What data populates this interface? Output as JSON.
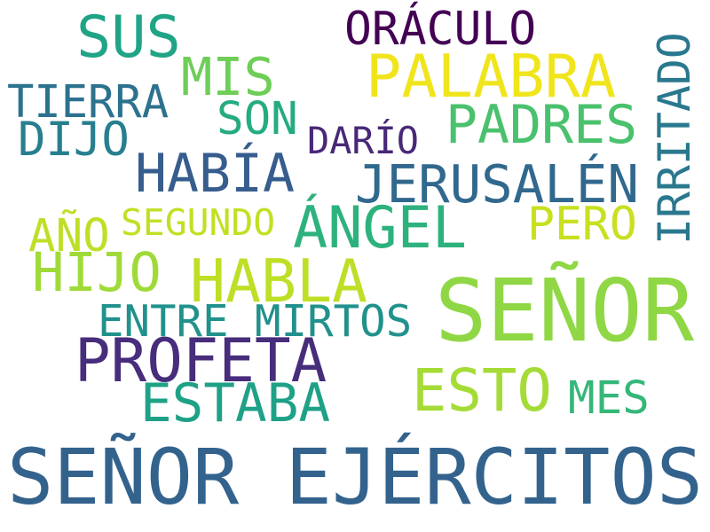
{
  "cloud": {
    "words": [
      {
        "text": "SEÑOR EJÉRCITOS",
        "color": "#33638d"
      },
      {
        "text": "SEÑOR",
        "color": "#8fd744"
      },
      {
        "text": "PROFETA",
        "color": "#472d7b"
      },
      {
        "text": "PALABRA",
        "color": "#f0e51d"
      },
      {
        "text": "ÁNGEL",
        "color": "#2db27d"
      },
      {
        "text": "HABLA",
        "color": "#bddf26"
      },
      {
        "text": "SUS",
        "color": "#20a486"
      },
      {
        "text": "HIJO",
        "color": "#a0da39"
      },
      {
        "text": "ESTABA",
        "color": "#1fa187"
      },
      {
        "text": "ESTO",
        "color": "#a5db36"
      },
      {
        "text": "JERUSALÉN",
        "color": "#31688e"
      },
      {
        "text": "HABÍA",
        "color": "#365d8d"
      },
      {
        "text": "PADRES",
        "color": "#4ac16d"
      },
      {
        "text": "ORÁCULO",
        "color": "#440154"
      },
      {
        "text": "MIS",
        "color": "#6ece58"
      },
      {
        "text": "IRRITADO",
        "color": "#2a788e"
      },
      {
        "text": "TIERRA",
        "color": "#2c728e"
      },
      {
        "text": "ENTRE MIRTOS",
        "color": "#21918c"
      },
      {
        "text": "SON",
        "color": "#25ab82"
      },
      {
        "text": "PERO",
        "color": "#c8e020"
      },
      {
        "text": "DIJO",
        "color": "#277f8e"
      },
      {
        "text": "MES",
        "color": "#35b779"
      },
      {
        "text": "AÑO",
        "color": "#bddf26"
      },
      {
        "text": "SEGUNDO",
        "color": "#c2df23"
      },
      {
        "text": "DARÍO",
        "color": "#482878"
      }
    ]
  }
}
